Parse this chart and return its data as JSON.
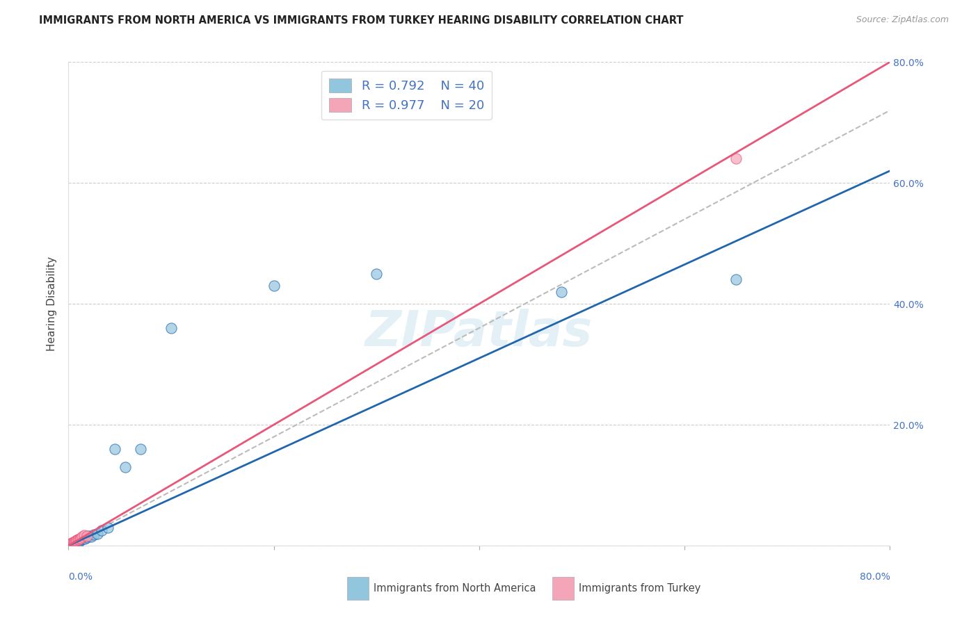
{
  "title": "IMMIGRANTS FROM NORTH AMERICA VS IMMIGRANTS FROM TURKEY HEARING DISABILITY CORRELATION CHART",
  "source": "Source: ZipAtlas.com",
  "ylabel": "Hearing Disability",
  "xlim": [
    0.0,
    0.8
  ],
  "ylim": [
    0.0,
    0.8
  ],
  "legend_R1": "R = 0.792",
  "legend_N1": "N = 40",
  "legend_R2": "R = 0.977",
  "legend_N2": "N = 20",
  "color_blue": "#92c5de",
  "color_pink": "#f4a6b8",
  "color_blue_line": "#2166ac",
  "color_pink_line": "#e8567a",
  "color_dashed": "#bbbbbb",
  "watermark": "ZIPatlas",
  "series1_label": "Immigrants from North America",
  "series2_label": "Immigrants from Turkey",
  "north_america_x": [
    0.001,
    0.002,
    0.002,
    0.003,
    0.003,
    0.004,
    0.004,
    0.005,
    0.005,
    0.006,
    0.006,
    0.007,
    0.007,
    0.008,
    0.008,
    0.009,
    0.009,
    0.01,
    0.01,
    0.011,
    0.012,
    0.013,
    0.014,
    0.015,
    0.016,
    0.018,
    0.02,
    0.022,
    0.025,
    0.028,
    0.032,
    0.038,
    0.045,
    0.055,
    0.07,
    0.1,
    0.2,
    0.3,
    0.48,
    0.65
  ],
  "north_america_y": [
    0.001,
    0.001,
    0.002,
    0.002,
    0.003,
    0.003,
    0.004,
    0.002,
    0.004,
    0.003,
    0.005,
    0.004,
    0.006,
    0.005,
    0.007,
    0.006,
    0.008,
    0.007,
    0.009,
    0.008,
    0.01,
    0.012,
    0.011,
    0.013,
    0.012,
    0.014,
    0.016,
    0.015,
    0.018,
    0.02,
    0.025,
    0.03,
    0.16,
    0.13,
    0.16,
    0.36,
    0.43,
    0.45,
    0.42,
    0.44
  ],
  "turkey_x": [
    0.001,
    0.002,
    0.003,
    0.003,
    0.004,
    0.005,
    0.005,
    0.006,
    0.006,
    0.007,
    0.007,
    0.008,
    0.009,
    0.01,
    0.011,
    0.012,
    0.013,
    0.015,
    0.018,
    0.65
  ],
  "turkey_y": [
    0.001,
    0.002,
    0.003,
    0.004,
    0.004,
    0.005,
    0.006,
    0.005,
    0.007,
    0.007,
    0.008,
    0.009,
    0.01,
    0.01,
    0.011,
    0.013,
    0.015,
    0.017,
    0.016,
    0.64
  ],
  "blue_trend": [
    0.0,
    0.0,
    0.8,
    0.62
  ],
  "pink_trend": [
    0.0,
    0.0,
    0.8,
    0.8
  ]
}
